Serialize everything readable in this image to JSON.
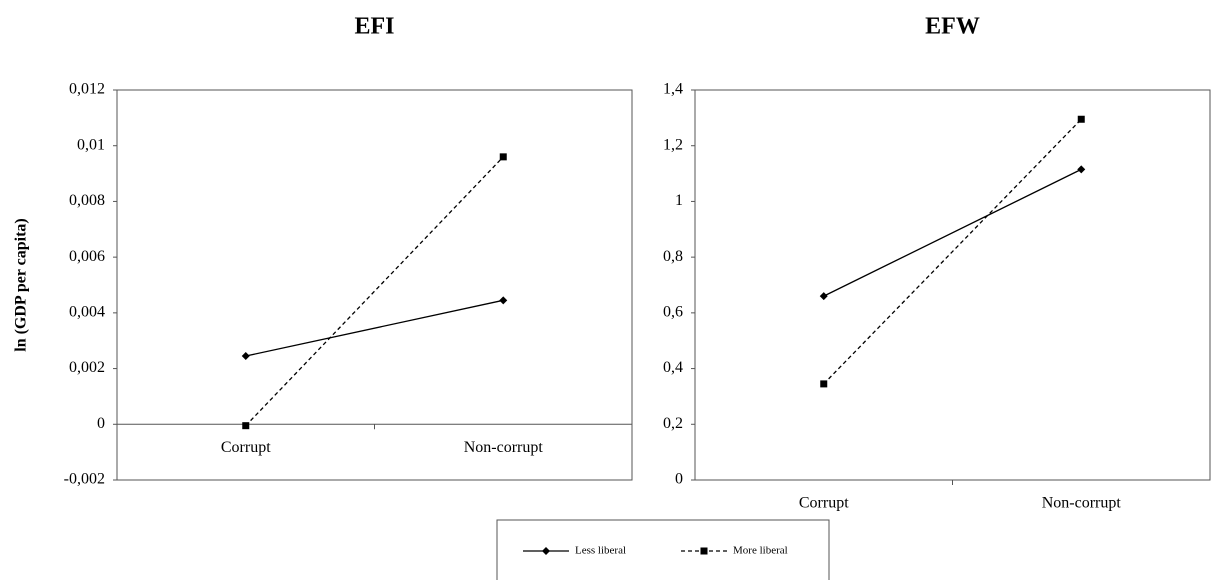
{
  "chart_data": [
    {
      "type": "line",
      "title": "EFI",
      "ylabel": "ln (GDP per capita)",
      "categories": [
        "Corrupt",
        "Non-corrupt"
      ],
      "series": [
        {
          "name": "Less liberal",
          "color": "#000000",
          "linestyle": "solid",
          "marker": "diamond",
          "values": [
            0.00245,
            0.00445
          ]
        },
        {
          "name": "More liberal",
          "color": "#000000",
          "linestyle": "dashed",
          "marker": "square",
          "values": [
            -5e-05,
            0.0096
          ]
        }
      ],
      "ylim": [
        -0.002,
        0.012
      ],
      "yticks": [
        {
          "value": -0.002,
          "label": "-0,002"
        },
        0,
        {
          "value": 0.002,
          "label": "0,002"
        },
        {
          "value": 0.004,
          "label": "0,004"
        },
        {
          "value": 0.006,
          "label": "0,006"
        },
        {
          "value": 0.008,
          "label": "0,008"
        },
        {
          "value": 0.01,
          "label": "0,01"
        },
        {
          "value": 0.012,
          "label": "0,012"
        }
      ],
      "grid": false
    },
    {
      "type": "line",
      "title": "EFW",
      "categories": [
        "Corrupt",
        "Non-corrupt"
      ],
      "series": [
        {
          "name": "Less liberal",
          "color": "#000000",
          "linestyle": "solid",
          "marker": "diamond",
          "values": [
            0.66,
            1.115
          ]
        },
        {
          "name": "More liberal",
          "color": "#000000",
          "linestyle": "dashed",
          "marker": "square",
          "values": [
            0.345,
            1.295
          ]
        }
      ],
      "ylim": [
        0,
        1.4
      ],
      "yticks": [
        0,
        {
          "value": 0.2,
          "label": "0,2"
        },
        {
          "value": 0.4,
          "label": "0,4"
        },
        {
          "value": 0.6,
          "label": "0,6"
        },
        {
          "value": 0.8,
          "label": "0,8"
        },
        1,
        {
          "value": 1.2,
          "label": "1,2"
        },
        {
          "value": 1.4,
          "label": "1,4"
        }
      ],
      "grid": false
    }
  ]
}
